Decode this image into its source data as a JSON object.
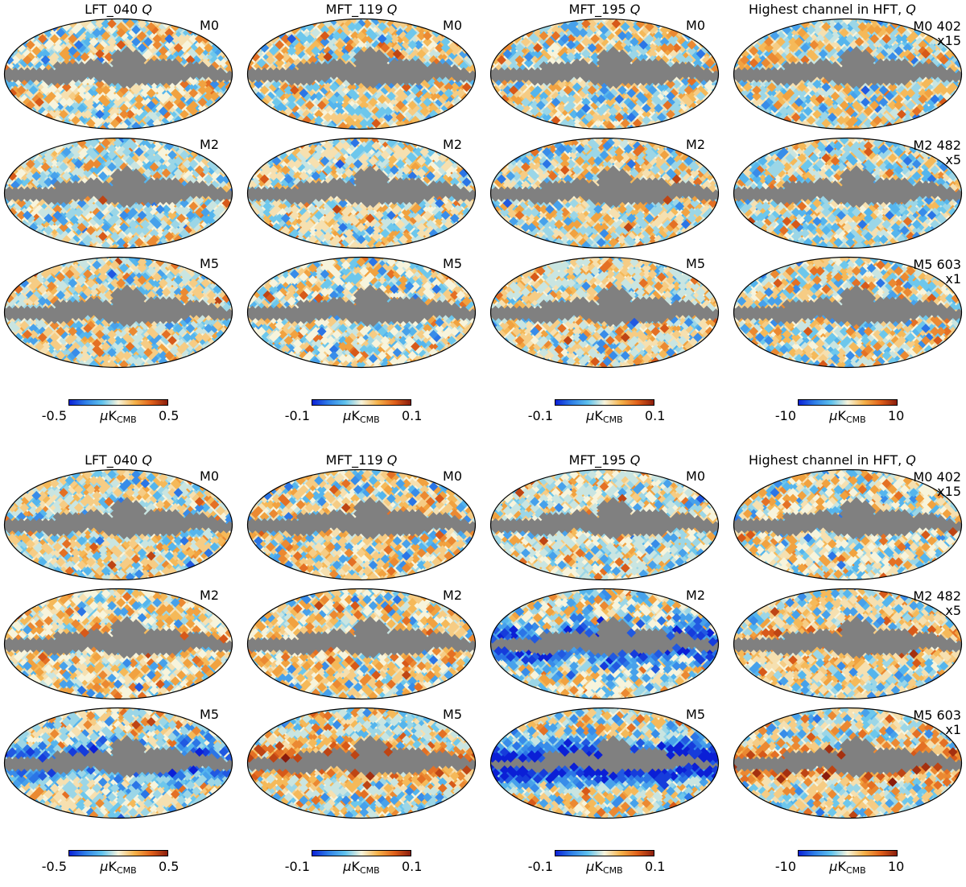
{
  "chart_data": {
    "type": "heatmap",
    "projection": "mollweide",
    "description_of_grid": "two blocks, each 3 rows (M0, M2, M5) x 4 columns",
    "colormap": [
      "#0b1fd6",
      "#2f7fe8",
      "#5ec2ee",
      "#f7f4dc",
      "#f5b24a",
      "#e0601a",
      "#8a1c0c"
    ],
    "mask_color": "#808080",
    "blocks": [
      {
        "columns": [
          {
            "title": "LFT_040",
            "stokes": "Q",
            "colorbar": {
              "min": "-0.5",
              "max": "0.5",
              "unit": "μK",
              "unit_sub": "CMB"
            }
          },
          {
            "title": "MFT_119",
            "stokes": "Q",
            "colorbar": {
              "min": "-0.1",
              "max": "0.1",
              "unit": "μK",
              "unit_sub": "CMB"
            }
          },
          {
            "title": "MFT_195",
            "stokes": "Q",
            "colorbar": {
              "min": "-0.1",
              "max": "0.1",
              "unit": "μK",
              "unit_sub": "CMB"
            }
          },
          {
            "title": "Highest channel in HFT,",
            "stokes": "Q",
            "colorbar": {
              "min": "-10",
              "max": "10",
              "unit": "μK",
              "unit_sub": "CMB"
            }
          }
        ],
        "rows": [
          {
            "model": "M0",
            "hft_label": "M0 402",
            "scale": "x15",
            "bias": [
              0,
              0,
              0,
              0
            ]
          },
          {
            "model": "M2",
            "hft_label": "M2 482",
            "scale": "x5",
            "bias": [
              0,
              0,
              0,
              0
            ]
          },
          {
            "model": "M5",
            "hft_label": "M5 603",
            "scale": "x1",
            "bias": [
              0,
              0,
              0,
              0
            ]
          }
        ]
      },
      {
        "columns": [
          {
            "title": "LFT_040",
            "stokes": "Q",
            "colorbar": {
              "min": "-0.5",
              "max": "0.5",
              "unit": "μK",
              "unit_sub": "CMB"
            }
          },
          {
            "title": "MFT_119",
            "stokes": "Q",
            "colorbar": {
              "min": "-0.1",
              "max": "0.1",
              "unit": "μK",
              "unit_sub": "CMB"
            }
          },
          {
            "title": "MFT_195",
            "stokes": "Q",
            "colorbar": {
              "min": "-0.1",
              "max": "0.1",
              "unit": "μK",
              "unit_sub": "CMB"
            }
          },
          {
            "title": "Highest channel in HFT,",
            "stokes": "Q",
            "colorbar": {
              "min": "-10",
              "max": "10",
              "unit": "μK",
              "unit_sub": "CMB"
            }
          }
        ],
        "rows": [
          {
            "model": "M0",
            "hft_label": "M0 402",
            "scale": "x15",
            "bias": [
              0,
              0,
              0,
              0
            ]
          },
          {
            "model": "M2",
            "hft_label": "M2 482",
            "scale": "x5",
            "bias": [
              0.1,
              0.1,
              -0.75,
              0.3
            ]
          },
          {
            "model": "M5",
            "hft_label": "M5 603",
            "scale": "x1",
            "bias": [
              -0.55,
              0.45,
              -1.0,
              0.4
            ]
          }
        ]
      }
    ]
  }
}
